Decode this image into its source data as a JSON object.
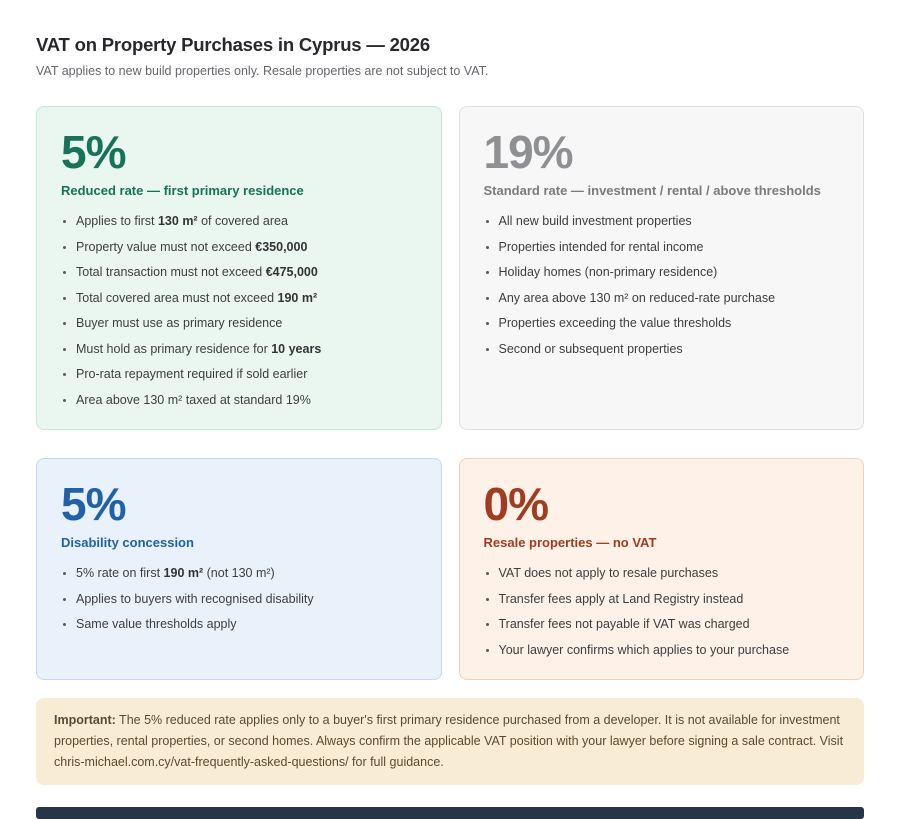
{
  "page": {
    "title": "VAT on Property Purchases in Cyprus — 2026",
    "subtitle": "VAT applies to new build properties only. Resale properties are not subject to VAT."
  },
  "cards": [
    {
      "name": "reduced-rate",
      "rate": "5%",
      "heading": "Reduced rate — first primary residence",
      "colors": {
        "bg": "#e9f7f0",
        "border": "#c7e8d8",
        "rate": "#17725a",
        "heading": "#17725a"
      },
      "bullets": [
        [
          {
            "t": "Applies to first ",
            "b": false
          },
          {
            "t": "130 m²",
            "b": true
          },
          {
            "t": " of covered area",
            "b": false
          }
        ],
        [
          {
            "t": "Property value must not exceed ",
            "b": false
          },
          {
            "t": "€350,000",
            "b": true
          }
        ],
        [
          {
            "t": "Total transaction must not exceed ",
            "b": false
          },
          {
            "t": "€475,000",
            "b": true
          }
        ],
        [
          {
            "t": "Total covered area must not exceed ",
            "b": false
          },
          {
            "t": "190 m²",
            "b": true
          }
        ],
        [
          {
            "t": "Buyer must use as primary residence",
            "b": false
          }
        ],
        [
          {
            "t": "Must hold as primary residence for ",
            "b": false
          },
          {
            "t": "10 years",
            "b": true
          }
        ],
        [
          {
            "t": "Pro-rata repayment required if sold earlier",
            "b": false
          }
        ],
        [
          {
            "t": "Area above 130 m² taxed at standard 19%",
            "b": false
          }
        ]
      ]
    },
    {
      "name": "standard-rate",
      "rate": "19%",
      "heading": "Standard rate — investment / rental / above thresholds",
      "colors": {
        "bg": "#f7f7f8",
        "border": "#e0e0e3",
        "rate": "#8f9093",
        "heading": "#7a7b7e"
      },
      "bullets": [
        [
          {
            "t": "All new build investment properties",
            "b": false
          }
        ],
        [
          {
            "t": "Properties intended for rental income",
            "b": false
          }
        ],
        [
          {
            "t": "Holiday homes (non-primary residence)",
            "b": false
          }
        ],
        [
          {
            "t": "Any area above 130 m² on reduced-rate purchase",
            "b": false
          }
        ],
        [
          {
            "t": "Properties exceeding the value thresholds",
            "b": false
          }
        ],
        [
          {
            "t": "Second or subsequent properties",
            "b": false
          }
        ]
      ]
    },
    {
      "name": "disability-concession",
      "rate": "5%",
      "heading": "Disability concession",
      "colors": {
        "bg": "#e9f1fb",
        "border": "#c3d9f0",
        "rate": "#2161a8",
        "heading": "#2161a8"
      },
      "bullets": [
        [
          {
            "t": "5% rate on first ",
            "b": false
          },
          {
            "t": "190 m²",
            "b": true
          },
          {
            "t": " (not 130 m²)",
            "b": false
          }
        ],
        [
          {
            "t": "Applies to buyers with recognised disability",
            "b": false
          }
        ],
        [
          {
            "t": "Same value thresholds apply",
            "b": false
          }
        ]
      ]
    },
    {
      "name": "resale-no-vat",
      "rate": "0%",
      "heading": "Resale properties — no VAT",
      "colors": {
        "bg": "#fdf1e8",
        "border": "#f1d1bc",
        "rate": "#a03c22",
        "heading": "#a03c22"
      },
      "bullets": [
        [
          {
            "t": "VAT does not apply to resale purchases",
            "b": false
          }
        ],
        [
          {
            "t": "Transfer fees apply at Land Registry instead",
            "b": false
          }
        ],
        [
          {
            "t": "Transfer fees not payable if VAT was charged",
            "b": false
          }
        ],
        [
          {
            "t": "Your lawyer confirms which applies to your purchase",
            "b": false
          }
        ]
      ]
    }
  ],
  "note": {
    "label": "Important:",
    "text": " The 5% reduced rate applies only to a buyer's first primary residence purchased from a developer. It is not available for investment properties, rental properties, or second homes. Always confirm the applicable VAT position with your lawyer before signing a sale contract. Visit chris-michael.com.cy/vat-frequently-asked-questions/ for full guidance.",
    "colors": {
      "bg": "#f9ecd4",
      "text": "#5a4b2f"
    }
  },
  "footer_bar": {
    "color": "#263547"
  }
}
